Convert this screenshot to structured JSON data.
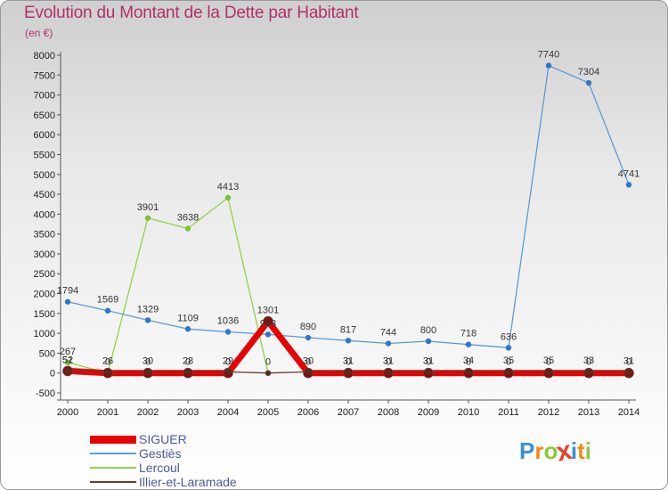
{
  "title": "Evolution du Montant de la Dette par Habitant",
  "subtitle": "(en €)",
  "logo": {
    "letters": [
      "P",
      "r",
      "o",
      "x",
      "i",
      "t",
      "i"
    ],
    "colors": [
      "#3a8fd6",
      "#f08a1c",
      "#8cc63f",
      "#e8412e",
      "#3a8fd6",
      "#f08a1c",
      "#8cc63f"
    ]
  },
  "chart_data": {
    "type": "line",
    "x": [
      2000,
      2001,
      2002,
      2003,
      2004,
      2005,
      2006,
      2007,
      2008,
      2009,
      2010,
      2011,
      2012,
      2013,
      2014
    ],
    "ylim": [
      -500,
      8000
    ],
    "yticks": [
      -500,
      0,
      500,
      1000,
      1500,
      2000,
      2500,
      3000,
      3500,
      4000,
      4500,
      5000,
      5500,
      6000,
      6500,
      7000,
      7500,
      8000
    ],
    "grid": false,
    "legend_position": "bottom-left",
    "series": [
      {
        "name": "SIGUER",
        "color": "#e80000",
        "width": 7,
        "values": [
          51,
          0,
          0,
          0,
          0,
          1301,
          0,
          0,
          0,
          0,
          0,
          0,
          0,
          0,
          0
        ],
        "labels": [
          "51",
          "0",
          "0",
          "0",
          "0",
          "1301",
          "0",
          "0",
          "0",
          "0",
          "0",
          "0",
          "0",
          "0",
          "0"
        ]
      },
      {
        "name": "Gestiès",
        "color": "#5b9bd5",
        "width": 1.3,
        "values": [
          1794,
          1569,
          1329,
          1109,
          1036,
          973,
          890,
          817,
          744,
          800,
          718,
          636,
          7740,
          7304,
          4741
        ],
        "labels": [
          "1794",
          "1569",
          "1329",
          "1109",
          "1036",
          "973",
          "890",
          "817",
          "744",
          "800",
          "718",
          "636",
          "7740",
          "7304",
          "4741"
        ]
      },
      {
        "name": "Lercoul",
        "color": "#8fd34a",
        "width": 1.3,
        "values": [
          267,
          0,
          3901,
          3638,
          4413,
          0,
          null,
          null,
          null,
          null,
          null,
          null,
          null,
          null,
          null
        ],
        "labels": [
          "267",
          "",
          "3901",
          "3638",
          "4413",
          "",
          "",
          "",
          "",
          "",
          "",
          "",
          "",
          "",
          ""
        ]
      },
      {
        "name": "Illier-et-Laramade",
        "color": "#6b3b2a",
        "width": 1.3,
        "values": [
          52,
          26,
          30,
          28,
          29,
          0,
          30,
          31,
          31,
          31,
          34,
          35,
          35,
          33,
          31
        ],
        "labels": [
          "52",
          "26",
          "30",
          "28",
          "29",
          "0",
          "30",
          "31",
          "31",
          "31",
          "34",
          "35",
          "35",
          "33",
          "31"
        ]
      }
    ]
  }
}
